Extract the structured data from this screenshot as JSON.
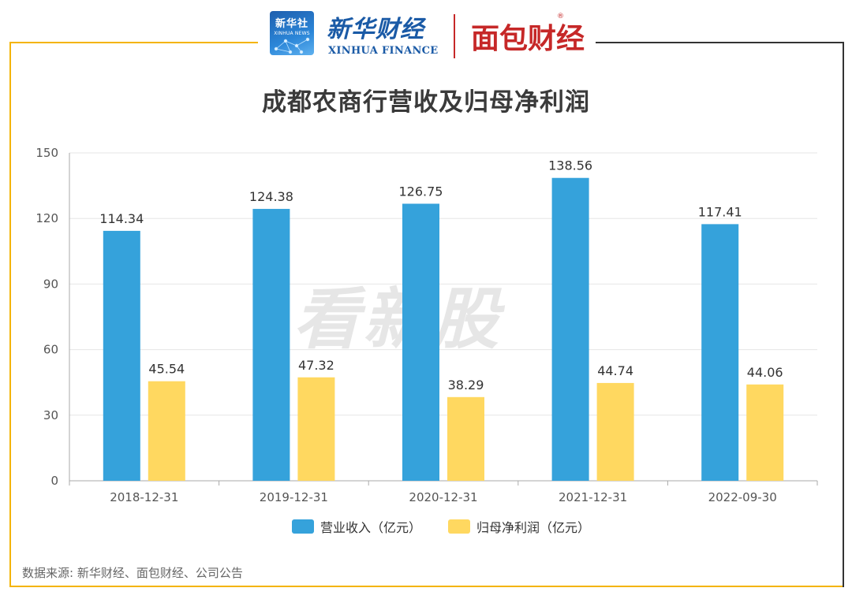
{
  "header": {
    "xinhua_badge_cn": "新华社",
    "xinhua_badge_en": "XINHUA NEWS",
    "xinhua_finance_cn": "新华财经",
    "xinhua_finance_en": "XINHUA FINANCE",
    "mianbao_cn": "面包财经",
    "registered_mark": "®"
  },
  "watermark": "看新股",
  "chart_data": {
    "type": "bar",
    "title": "成都农商行营收及归母净利润",
    "categories": [
      "2018-12-31",
      "2019-12-31",
      "2020-12-31",
      "2021-12-31",
      "2022-09-30"
    ],
    "series": [
      {
        "name": "营业收入（亿元）",
        "color": "#35a2db",
        "values": [
          114.34,
          124.38,
          126.75,
          138.56,
          117.41
        ]
      },
      {
        "name": "归母净利润（亿元）",
        "color": "#ffd860",
        "values": [
          45.54,
          47.32,
          38.29,
          44.74,
          44.06
        ]
      }
    ],
    "ylim": [
      0,
      150
    ],
    "yticks": [
      0,
      30,
      60,
      90,
      120,
      150
    ],
    "xlabel": "",
    "ylabel": "",
    "grid": true,
    "legend_position": "bottom-center"
  },
  "source": "数据来源: 新华财经、面包财经、公司公告"
}
